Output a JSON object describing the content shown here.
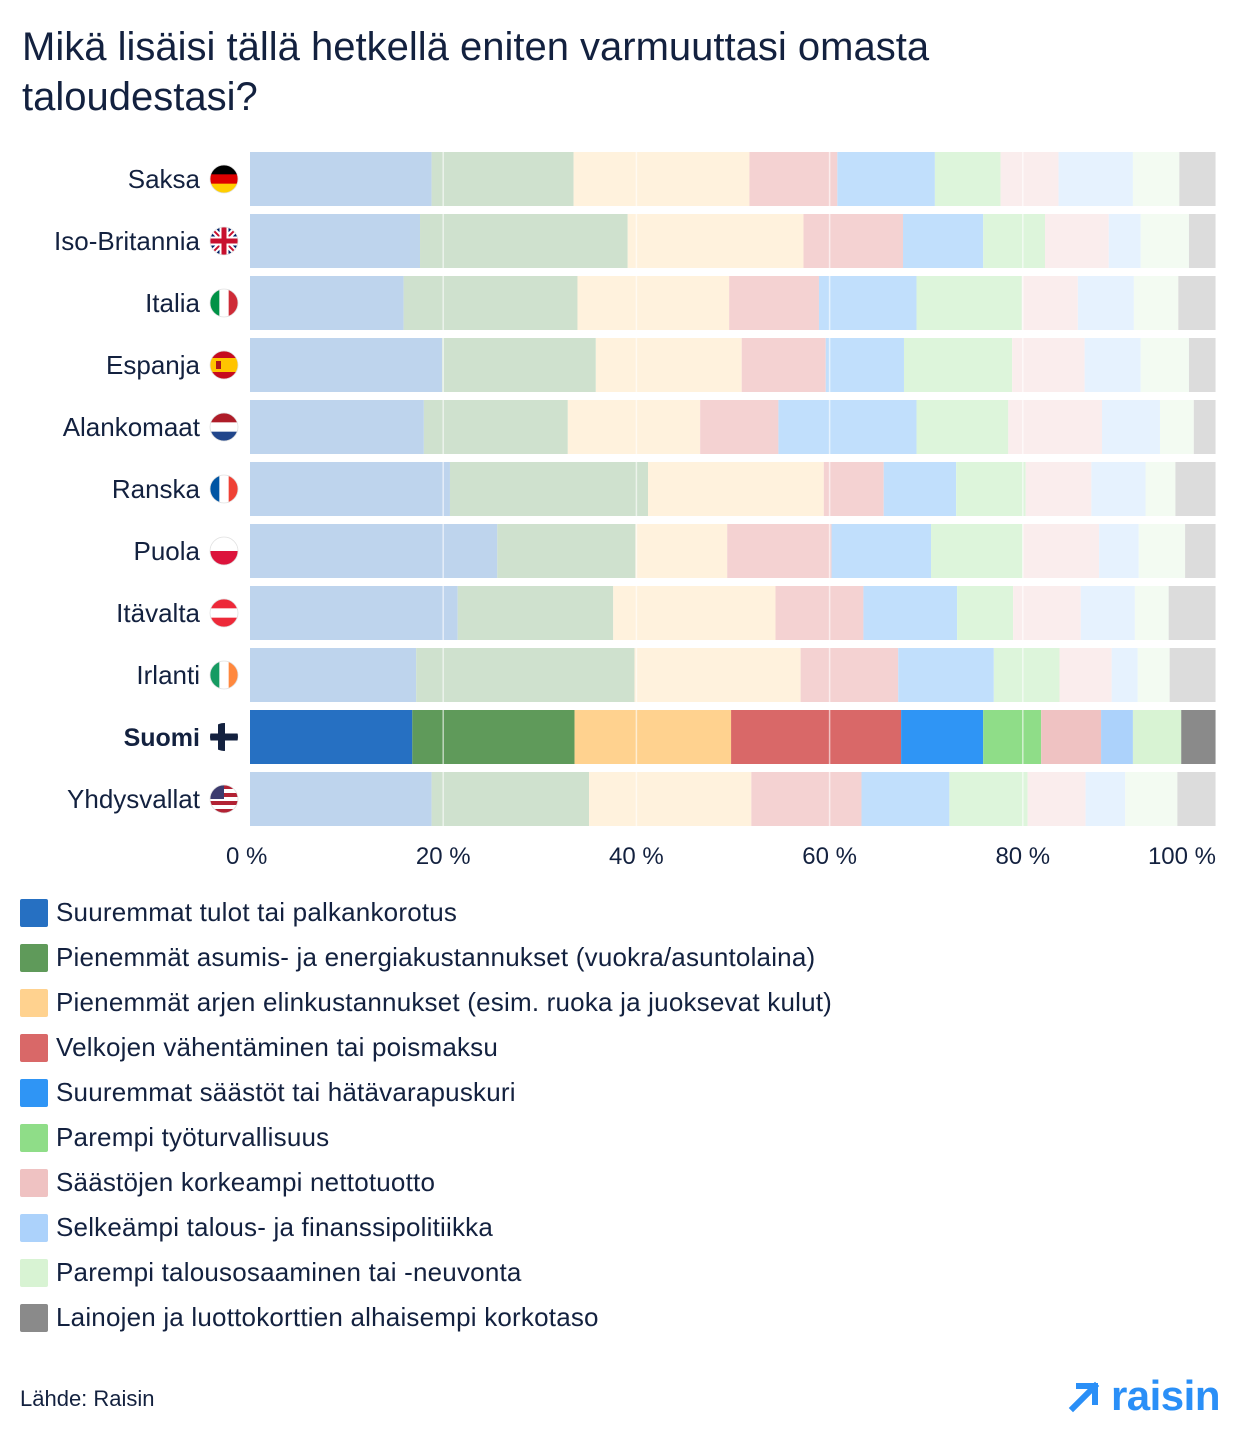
{
  "chart_data": {
    "type": "bar",
    "orientation": "horizontal",
    "stacked": true,
    "normalized": true,
    "title": "Mikä lisäisi tällä hetkellä eniten varmuuttasi omasta taloudestasi?",
    "xlim": [
      0,
      100
    ],
    "x_ticks": [
      "0 %",
      "20 %",
      "40 %",
      "60 %",
      "80 %",
      "100 %"
    ],
    "highlight_category": "Suomi",
    "categories": [
      "Saksa",
      "Iso-Britannia",
      "Italia",
      "Espanja",
      "Alankomaat",
      "Ranska",
      "Puola",
      "Itävalta",
      "Irlanti",
      "Suomi",
      "Yhdysvallat"
    ],
    "flags": [
      "de-flag-icon",
      "gb-flag-icon",
      "it-flag-icon",
      "es-flag-icon",
      "nl-flag-icon",
      "fr-flag-icon",
      "pl-flag-icon",
      "at-flag-icon",
      "ie-flag-icon",
      "fi-flag-icon",
      "us-flag-icon"
    ],
    "series": [
      {
        "name": "Suuremmat tulot tai palkankorotus",
        "color": "#2670c2",
        "values": [
          18.8,
          17.6,
          15.9,
          19.9,
          18.0,
          20.7,
          25.6,
          21.5,
          17.2,
          16.8,
          18.8
        ]
      },
      {
        "name": "Pienemmät asumis- ja energiakustannukset (vuokra/asuntolaina)",
        "color": "#5f9a5a",
        "values": [
          14.7,
          21.5,
          18.0,
          15.9,
          14.9,
          20.5,
          14.3,
          16.1,
          22.6,
          16.8,
          16.3
        ]
      },
      {
        "name": "Pienemmät arjen elinkustannukset (esim. ruoka ja juoksevat kulut)",
        "color": "#ffd28f",
        "values": [
          18.2,
          18.2,
          15.7,
          15.1,
          13.7,
          18.2,
          9.5,
          16.8,
          17.2,
          16.2,
          16.8
        ]
      },
      {
        "name": "Velkojen vähentäminen tai poismaksu",
        "color": "#d96868",
        "values": [
          9.1,
          10.3,
          9.3,
          8.7,
          8.1,
          6.2,
          10.8,
          9.1,
          10.1,
          17.6,
          11.4
        ]
      },
      {
        "name": "Suuremmat säästöt tai hätävarapuskuri",
        "color": "#2f95f5",
        "values": [
          10.1,
          8.3,
          10.1,
          8.1,
          14.3,
          7.5,
          10.3,
          9.7,
          9.9,
          8.5,
          9.1
        ]
      },
      {
        "name": "Parempi työturvallisuus",
        "color": "#8fdd88",
        "values": [
          6.8,
          6.4,
          10.9,
          11.2,
          9.5,
          7.2,
          9.5,
          5.8,
          6.8,
          6.0,
          8.1
        ]
      },
      {
        "name": "Säästöjen korkeampi nettotuotto",
        "color": "#efc2c2",
        "values": [
          6.0,
          6.6,
          5.8,
          7.5,
          9.7,
          6.8,
          7.9,
          7.0,
          5.4,
          6.2,
          6.0
        ]
      },
      {
        "name": "Selkeämpi talous- ja finanssipolitiikka",
        "color": "#acd2fb",
        "values": [
          7.7,
          3.3,
          5.8,
          5.8,
          6.0,
          5.6,
          4.1,
          5.6,
          2.7,
          3.3,
          4.1
        ]
      },
      {
        "name": "Parempi talousosaaminen tai -neuvonta",
        "color": "#d8f3d3",
        "values": [
          4.8,
          5.0,
          4.6,
          5.0,
          3.5,
          3.1,
          4.8,
          3.5,
          3.3,
          5.0,
          5.4
        ]
      },
      {
        "name": "Lainojen ja luottokorttien alhaisempi korkotaso",
        "color": "#8a8a8a",
        "values": [
          3.8,
          2.8,
          3.9,
          2.8,
          2.3,
          4.2,
          3.2,
          4.9,
          4.8,
          3.6,
          4.0
        ]
      }
    ]
  },
  "source": "Lähde: Raisin",
  "logo_text": "raisin"
}
